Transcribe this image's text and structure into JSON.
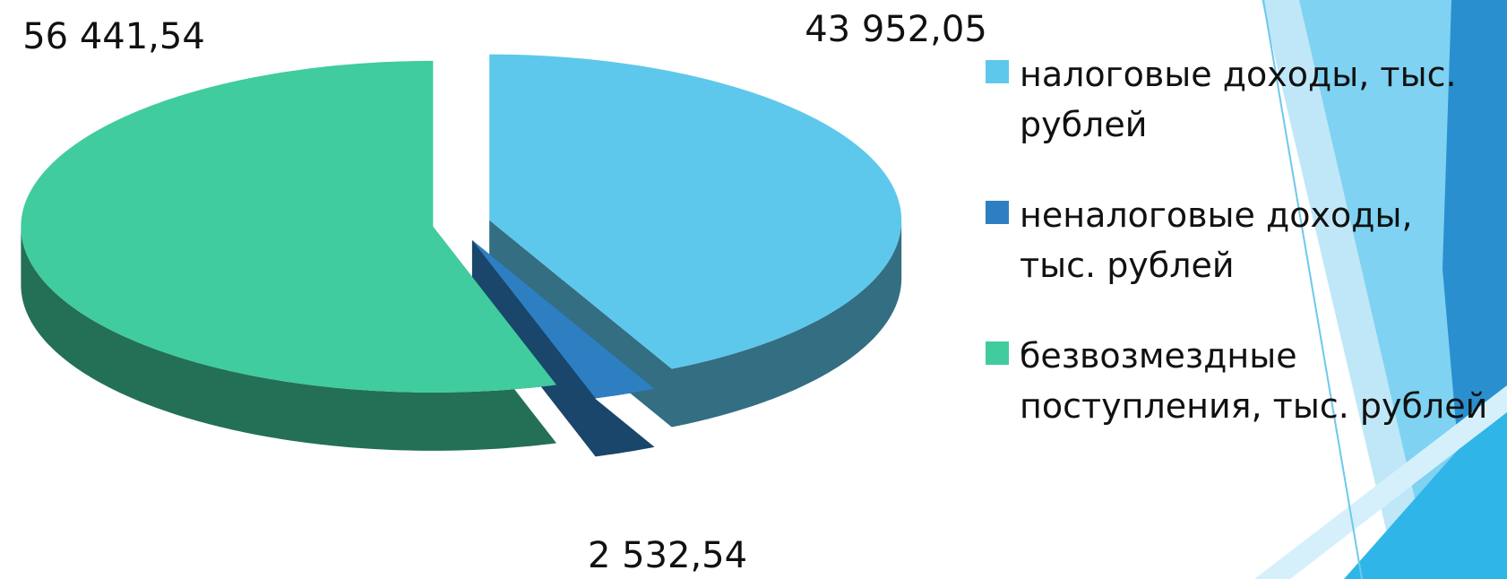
{
  "chart_data": {
    "type": "pie",
    "categories": [
      "налоговые доходы, тыс. рублей",
      "неналоговые доходы, тыс. рублей",
      "безвозмездные поступления, тыс. рублей"
    ],
    "values": [
      43952.05,
      2532.54,
      56441.54
    ],
    "value_labels": [
      "43 952,05",
      "2 532,54",
      "56 441,54"
    ],
    "colors": [
      "#5ec8ec",
      "#2e7fc1",
      "#40cc9e"
    ],
    "legend": "right"
  }
}
